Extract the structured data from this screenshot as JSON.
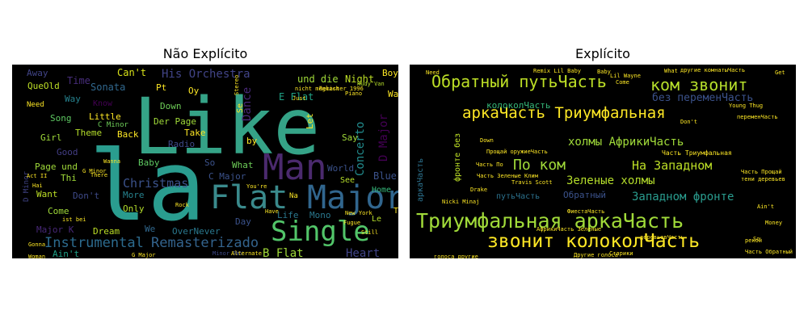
{
  "chart_data": [
    {
      "type": "wordcloud",
      "title": "Não Explícito",
      "words": [
        {
          "text": "la",
          "weight": 100,
          "color": "#2a9d8f"
        },
        {
          "text": "Like",
          "weight": 98,
          "color": "#35a387"
        },
        {
          "text": "Man",
          "weight": 60,
          "color": "#4b2a6e"
        },
        {
          "text": "Flat",
          "weight": 58,
          "color": "#3a8a8c"
        },
        {
          "text": "Major",
          "weight": 58,
          "color": "#31668e"
        },
        {
          "text": "Single",
          "weight": 48,
          "color": "#52c569"
        },
        {
          "text": "Instrumental",
          "weight": 28,
          "color": "#2c6b8e"
        },
        {
          "text": "Remasterizado",
          "weight": 28,
          "color": "#33638d"
        },
        {
          "text": "Christmas",
          "weight": 24,
          "color": "#3b528b"
        },
        {
          "text": "His Orchestra",
          "weight": 22,
          "color": "#414487"
        },
        {
          "text": "Heart",
          "weight": 22,
          "color": "#414487"
        },
        {
          "text": "B Flat",
          "weight": 22,
          "color": "#a0da39"
        },
        {
          "text": "Dance",
          "weight": 22,
          "color": "#482878"
        },
        {
          "text": "Concerto",
          "weight": 22,
          "color": "#228b8d"
        },
        {
          "text": "D Major",
          "weight": 22,
          "color": "#440154"
        },
        {
          "text": "Blue",
          "weight": 20,
          "color": "#3b528b"
        },
        {
          "text": "Night",
          "weight": 20,
          "color": "#bddf26"
        },
        {
          "text": "und die",
          "weight": 20,
          "color": "#a0da39"
        },
        {
          "text": "E Flat",
          "weight": 20,
          "color": "#20a386"
        },
        {
          "text": "Can't",
          "weight": 20,
          "color": "#d8e219"
        },
        {
          "text": "Sonata",
          "weight": 20,
          "color": "#31688e"
        },
        {
          "text": "Time",
          "weight": 20,
          "color": "#472d7b"
        },
        {
          "text": "QueOld",
          "weight": 18,
          "color": "#bddf26"
        },
        {
          "text": "Away",
          "weight": 18,
          "color": "#414487"
        },
        {
          "text": "Way",
          "weight": 18,
          "color": "#26828e"
        },
        {
          "text": "Little",
          "weight": 18,
          "color": "#fde725"
        },
        {
          "text": "Song",
          "weight": 18,
          "color": "#5ec962"
        },
        {
          "text": "Girl",
          "weight": 18,
          "color": "#a0da39"
        },
        {
          "text": "Theme",
          "weight": 18,
          "color": "#b5de2b"
        },
        {
          "text": "Back",
          "weight": 18,
          "color": "#fde725"
        },
        {
          "text": "Good",
          "weight": 18,
          "color": "#433e85"
        },
        {
          "text": "Page und",
          "weight": 18,
          "color": "#a0da39"
        },
        {
          "text": "Thi",
          "weight": 18,
          "color": "#a0da39"
        },
        {
          "text": "Want",
          "weight": 18,
          "color": "#bddf26"
        },
        {
          "text": "Don't",
          "weight": 18,
          "color": "#3e4a89"
        },
        {
          "text": "Come",
          "weight": 18,
          "color": "#a0da39"
        },
        {
          "text": "Major K",
          "weight": 18,
          "color": "#482878"
        },
        {
          "text": "Dream",
          "weight": 18,
          "color": "#bddf26"
        },
        {
          "text": "Ain't",
          "weight": 18,
          "color": "#1fa188"
        },
        {
          "text": "Know",
          "weight": 16,
          "color": "#440154"
        },
        {
          "text": "Pt",
          "weight": 18,
          "color": "#fde725"
        },
        {
          "text": "Oy",
          "weight": 18,
          "color": "#fde725"
        },
        {
          "text": "Down",
          "weight": 18,
          "color": "#6ece58"
        },
        {
          "text": "Der Page",
          "weight": 18,
          "color": "#a0da39"
        },
        {
          "text": "Take",
          "weight": 18,
          "color": "#fde725"
        },
        {
          "text": "Radio",
          "weight": 18,
          "color": "#3e4a89"
        },
        {
          "text": "Baby",
          "weight": 18,
          "color": "#5ec962"
        },
        {
          "text": "So",
          "weight": 18,
          "color": "#3b528b"
        },
        {
          "text": "What",
          "weight": 18,
          "color": "#6ece58"
        },
        {
          "text": "C Major",
          "weight": 18,
          "color": "#3b528b"
        },
        {
          "text": "More",
          "weight": 18,
          "color": "#26828e"
        },
        {
          "text": "Only",
          "weight": 18,
          "color": "#b5de2b"
        },
        {
          "text": "We",
          "weight": 18,
          "color": "#31688e"
        },
        {
          "text": "OverNever",
          "weight": 18,
          "color": "#2a788e"
        },
        {
          "text": "Day",
          "weight": 18,
          "color": "#3b528b"
        },
        {
          "text": "Life",
          "weight": 18,
          "color": "#2a788e"
        },
        {
          "text": "Mono",
          "weight": 18,
          "color": "#2a788e"
        },
        {
          "text": "Let",
          "weight": 18,
          "color": "#fde725"
        },
        {
          "text": "by",
          "weight": 18,
          "color": "#fde725"
        },
        {
          "text": "Say",
          "weight": 18,
          "color": "#a0da39"
        },
        {
          "text": "World",
          "weight": 18,
          "color": "#3b528b"
        },
        {
          "text": "See",
          "weight": 16,
          "color": "#b5de2b"
        },
        {
          "text": "Home",
          "weight": 16,
          "color": "#35b779"
        },
        {
          "text": "Le",
          "weight": 16,
          "color": "#b5de2b"
        },
        {
          "text": "Tu",
          "weight": 16,
          "color": "#fde725"
        },
        {
          "text": "Boy",
          "weight": 18,
          "color": "#fde725"
        },
        {
          "text": "Wa",
          "weight": 18,
          "color": "#fde725"
        },
        {
          "text": "Se",
          "weight": 16,
          "color": "#fde725"
        },
        {
          "text": "Na",
          "weight": 14,
          "color": "#fde725"
        },
        {
          "text": "Need",
          "weight": 14,
          "color": "#fde725"
        },
        {
          "text": "C Minor",
          "weight": 14,
          "color": "#6ece58"
        },
        {
          "text": "D Minor",
          "weight": 14,
          "color": "#414487"
        },
        {
          "text": "Minor BWV",
          "weight": 12,
          "color": "#3e4a89"
        },
        {
          "text": "Rudy Van",
          "weight": 10,
          "color": "#b5de2b"
        },
        {
          "text": "Just",
          "weight": 12,
          "color": "#fde725"
        },
        {
          "text": "Piano",
          "weight": 10,
          "color": "#fde725"
        },
        {
          "text": "Stereo",
          "weight": 10,
          "color": "#fde725"
        },
        {
          "text": "New York",
          "weight": 10,
          "color": "#fde725"
        },
        {
          "text": "Fugue",
          "weight": 10,
          "color": "#fde725"
        },
        {
          "text": "Still",
          "weight": 10,
          "color": "#fde725"
        },
        {
          "text": "Wanna",
          "weight": 10,
          "color": "#fde725"
        },
        {
          "text": "There",
          "weight": 10,
          "color": "#fde725"
        },
        {
          "text": "Woman",
          "weight": 10,
          "color": "#fde725"
        },
        {
          "text": "Act II",
          "weight": 10,
          "color": "#fde725"
        },
        {
          "text": "Alternate",
          "weight": 10,
          "color": "#fde725"
        },
        {
          "text": "Gonna",
          "weight": 10,
          "color": "#fde725"
        },
        {
          "text": "You're",
          "weight": 10,
          "color": "#fde725"
        },
        {
          "text": "Rock",
          "weight": 10,
          "color": "#fde725"
        },
        {
          "text": "ist bei",
          "weight": 10,
          "color": "#fde725"
        },
        {
          "text": "Hai",
          "weight": 10,
          "color": "#fde725"
        },
        {
          "text": "G Minor",
          "weight": 10,
          "color": "#fde725"
        },
        {
          "text": "G Major",
          "weight": 10,
          "color": "#fde725"
        },
        {
          "text": "Have",
          "weight": 10,
          "color": "#fde725"
        },
        {
          "text": "nicht möglich",
          "weight": 8,
          "color": "#fde725"
        },
        {
          "text": "Remaster 1996",
          "weight": 8,
          "color": "#fde725"
        }
      ]
    },
    {
      "type": "wordcloud",
      "title": "Explícito",
      "words": [
        {
          "text": "Триумфальная аркаЧасть",
          "weight": 100,
          "color": "#a0da39"
        },
        {
          "text": "звонит колоколЧасть",
          "weight": 90,
          "color": "#fde725"
        },
        {
          "text": "Обратный путьЧасть",
          "weight": 80,
          "color": "#bddf26"
        },
        {
          "text": "ком звонит",
          "weight": 80,
          "color": "#b5de2b"
        },
        {
          "text": "аркаЧасть Триумфальная",
          "weight": 75,
          "color": "#fde725"
        },
        {
          "text": "По ком",
          "weight": 72,
          "color": "#a0da39"
        },
        {
          "text": "На Западном",
          "weight": 60,
          "color": "#bddf26"
        },
        {
          "text": "холмы АфрикиЧасть",
          "weight": 55,
          "color": "#a0da39"
        },
        {
          "text": "Зеленые холмы",
          "weight": 55,
          "color": "#b5de2b"
        },
        {
          "text": "Западном фронте",
          "weight": 55,
          "color": "#2a9d8f"
        },
        {
          "text": "без переменЧасть",
          "weight": 50,
          "color": "#3b528b"
        },
        {
          "text": "колоколЧасть",
          "weight": 45,
          "color": "#35b779"
        },
        {
          "text": "Обратный",
          "weight": 45,
          "color": "#3b528b"
        },
        {
          "text": "путьЧасть",
          "weight": 40,
          "color": "#2c728e"
        },
        {
          "text": "аркаЧасть",
          "weight": 38,
          "color": "#2c728e"
        },
        {
          "text": "фронте без",
          "weight": 38,
          "color": "#bddf26"
        },
        {
          "text": "Часть Триумфальная",
          "weight": 30,
          "color": "#fde725"
        },
        {
          "text": "Прощай оружиеЧасть",
          "weight": 26,
          "color": "#fde725"
        },
        {
          "text": "ФиестаЧасть",
          "weight": 24,
          "color": "#fde725"
        },
        {
          "text": "АфрикиЧасть Зеленые",
          "weight": 24,
          "color": "#fde725"
        },
        {
          "text": "голоса другие",
          "weight": 22,
          "color": "#fde725"
        },
        {
          "text": "Другие голоса",
          "weight": 22,
          "color": "#fde725"
        },
        {
          "text": "Часть По",
          "weight": 22,
          "color": "#fde725"
        },
        {
          "text": "Часть Зеленые",
          "weight": 22,
          "color": "#fde725"
        },
        {
          "text": "Remix Lil Baby",
          "weight": 14,
          "color": "#fde725"
        },
        {
          "text": "Drake",
          "weight": 14,
          "color": "#fde725"
        },
        {
          "text": "Young Thug",
          "weight": 12,
          "color": "#fde725"
        },
        {
          "text": "Ain't",
          "weight": 12,
          "color": "#fde725"
        },
        {
          "text": "Money",
          "weight": 10,
          "color": "#fde725"
        },
        {
          "text": "Don't",
          "weight": 12,
          "color": "#fde725"
        },
        {
          "text": "What",
          "weight": 12,
          "color": "#fde725"
        },
        {
          "text": "Часть Прощай",
          "weight": 14,
          "color": "#fde725"
        },
        {
          "text": "Часть Обратный",
          "weight": 14,
          "color": "#fde725"
        },
        {
          "text": "другие комнатыЧасть",
          "weight": 14,
          "color": "#fde725"
        },
        {
          "text": "переменЧасть",
          "weight": 14,
          "color": "#fde725"
        },
        {
          "text": "деревьевЧасть",
          "weight": 14,
          "color": "#fde725"
        },
        {
          "text": "Nicki Minaj",
          "weight": 10,
          "color": "#fde725"
        },
        {
          "text": "Lil Wayne",
          "weight": 10,
          "color": "#fde725"
        },
        {
          "text": "Travis Scott",
          "weight": 10,
          "color": "#fde725"
        },
        {
          "text": "Come",
          "weight": 10,
          "color": "#fde725"
        },
        {
          "text": "Baby",
          "weight": 12,
          "color": "#fde725"
        },
        {
          "text": "Down",
          "weight": 12,
          "color": "#fde725"
        },
        {
          "text": "тени деревьев",
          "weight": 12,
          "color": "#fde725"
        },
        {
          "text": "рекой",
          "weight": 12,
          "color": "#fde725"
        },
        {
          "text": "Старики",
          "weight": 12,
          "color": "#fde725"
        },
        {
          "text": "Клим",
          "weight": 10,
          "color": "#fde725"
        },
        {
          "text": "So",
          "weight": 10,
          "color": "#fde725"
        },
        {
          "text": "Need",
          "weight": 10,
          "color": "#fde725"
        },
        {
          "text": "Get",
          "weight": 10,
          "color": "#fde725"
        }
      ]
    }
  ]
}
